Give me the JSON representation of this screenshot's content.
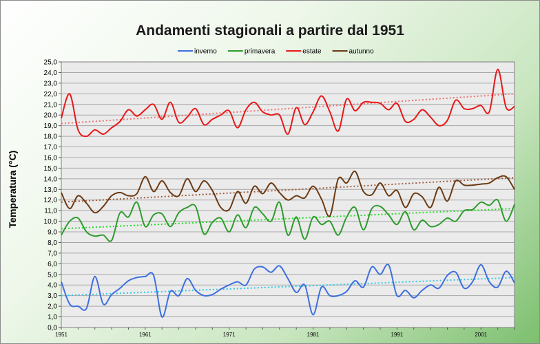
{
  "chart_data": {
    "type": "line",
    "title": "Andamenti stagionali a partire dal 1951",
    "xlabel": "",
    "ylabel": "Temperatura (°C)",
    "xlim": [
      1951,
      2005
    ],
    "ylim": [
      0,
      25
    ],
    "ytick_step": 1,
    "ytick_labels": [
      "0,0",
      "1,0",
      "2,0",
      "3,0",
      "4,0",
      "5,0",
      "6,0",
      "7,0",
      "8,0",
      "9,0",
      "10,0",
      "11,0",
      "12,0",
      "13,0",
      "14,0",
      "15,0",
      "16,0",
      "17,0",
      "18,0",
      "19,0",
      "20,0",
      "21,0",
      "22,0",
      "23,0",
      "24,0",
      "25,0"
    ],
    "xtick_labels": [
      "1951",
      "1961",
      "1971",
      "1981",
      "1991",
      "2001"
    ],
    "xtick_values": [
      1951,
      1961,
      1971,
      1981,
      1991,
      2001
    ],
    "grid": true,
    "legend_position": "top",
    "series": [
      {
        "name": "inverno",
        "color": "#3d6fe0",
        "trend_color": "#2ec8e8",
        "trend": [
          3.0,
          4.7
        ],
        "years": [
          1951,
          1952,
          1953,
          1954,
          1955,
          1956,
          1957,
          1958,
          1959,
          1960,
          1961,
          1962,
          1963,
          1964,
          1965,
          1966,
          1967,
          1968,
          1969,
          1970,
          1971,
          1972,
          1973,
          1974,
          1975,
          1976,
          1977,
          1978,
          1979,
          1980,
          1981,
          1982,
          1983,
          1984,
          1985,
          1986,
          1987,
          1988,
          1989,
          1990,
          1991,
          1992,
          1993,
          1994,
          1995,
          1996,
          1997,
          1998,
          1999,
          2000,
          2001,
          2002,
          2003,
          2004,
          2005
        ],
        "values": [
          4.3,
          2.2,
          2.0,
          1.8,
          4.8,
          2.2,
          3.1,
          3.7,
          4.4,
          4.7,
          4.8,
          4.9,
          1.0,
          3.4,
          3.0,
          4.6,
          3.5,
          3.0,
          3.1,
          3.6,
          4.0,
          4.3,
          4.0,
          5.5,
          5.7,
          5.2,
          5.8,
          4.6,
          3.3,
          4.0,
          1.2,
          3.8,
          3.0,
          3.0,
          3.4,
          4.4,
          3.8,
          5.7,
          5.0,
          5.9,
          3.0,
          3.5,
          2.8,
          3.5,
          4.0,
          3.7,
          4.9,
          5.2,
          3.7,
          4.3,
          5.9,
          4.3,
          3.8,
          5.3,
          4.2
        ]
      },
      {
        "name": "primavera",
        "color": "#2e9b2e",
        "trend_color": "#22dd22",
        "trend": [
          9.3,
          11.2
        ],
        "years": [
          1951,
          1952,
          1953,
          1954,
          1955,
          1956,
          1957,
          1958,
          1959,
          1960,
          1961,
          1962,
          1963,
          1964,
          1965,
          1966,
          1967,
          1968,
          1969,
          1970,
          1971,
          1972,
          1973,
          1974,
          1975,
          1976,
          1977,
          1978,
          1979,
          1980,
          1981,
          1982,
          1983,
          1984,
          1985,
          1986,
          1987,
          1988,
          1989,
          1990,
          1991,
          1992,
          1993,
          1994,
          1995,
          1996,
          1997,
          1998,
          1999,
          2000,
          2001,
          2002,
          2003,
          2004,
          2005
        ],
        "values": [
          8.7,
          10.0,
          10.3,
          9.0,
          8.6,
          8.7,
          8.2,
          10.8,
          10.4,
          11.8,
          9.5,
          10.6,
          10.7,
          9.5,
          10.8,
          11.3,
          11.4,
          8.8,
          9.9,
          10.3,
          9.0,
          10.6,
          9.4,
          11.3,
          10.7,
          10.0,
          11.8,
          8.7,
          10.4,
          8.3,
          10.4,
          9.7,
          10.0,
          8.7,
          10.4,
          11.3,
          9.2,
          11.2,
          11.4,
          10.6,
          9.7,
          10.9,
          9.2,
          10.1,
          9.5,
          9.7,
          10.3,
          10.0,
          11.0,
          11.1,
          11.8,
          11.5,
          12.0,
          10.0,
          11.6
        ]
      },
      {
        "name": "estate",
        "color": "#e81818",
        "trend_color": "#f07070",
        "trend": [
          19.2,
          22.0
        ],
        "years": [
          1951,
          1952,
          1953,
          1954,
          1955,
          1956,
          1957,
          1958,
          1959,
          1960,
          1961,
          1962,
          1963,
          1964,
          1965,
          1966,
          1967,
          1968,
          1969,
          1970,
          1971,
          1972,
          1973,
          1974,
          1975,
          1976,
          1977,
          1978,
          1979,
          1980,
          1981,
          1982,
          1983,
          1984,
          1985,
          1986,
          1987,
          1988,
          1989,
          1990,
          1991,
          1992,
          1993,
          1994,
          1995,
          1996,
          1997,
          1998,
          1999,
          2000,
          2001,
          2002,
          2003,
          2004,
          2005
        ],
        "values": [
          19.7,
          22.0,
          18.6,
          18.0,
          18.6,
          18.2,
          18.8,
          19.4,
          20.5,
          19.9,
          20.5,
          21.0,
          19.6,
          21.2,
          19.3,
          19.8,
          20.6,
          19.1,
          19.6,
          20.0,
          20.4,
          18.8,
          20.5,
          21.2,
          20.3,
          20.0,
          20.0,
          18.2,
          20.7,
          19.1,
          20.3,
          21.8,
          20.3,
          18.5,
          21.5,
          20.4,
          21.2,
          21.2,
          21.1,
          20.5,
          21.1,
          19.4,
          19.6,
          20.5,
          19.8,
          19.0,
          19.5,
          21.4,
          20.6,
          20.6,
          20.9,
          20.3,
          24.3,
          20.7,
          20.8
        ]
      },
      {
        "name": "autunno",
        "color": "#6b3a13",
        "trend_color": "#a05a3c",
        "trend": [
          11.8,
          14.1
        ],
        "years": [
          1951,
          1952,
          1953,
          1954,
          1955,
          1956,
          1957,
          1958,
          1959,
          1960,
          1961,
          1962,
          1963,
          1964,
          1965,
          1966,
          1967,
          1968,
          1969,
          1970,
          1971,
          1972,
          1973,
          1974,
          1975,
          1976,
          1977,
          1978,
          1979,
          1980,
          1981,
          1982,
          1983,
          1984,
          1985,
          1986,
          1987,
          1988,
          1989,
          1990,
          1991,
          1992,
          1993,
          1994,
          1995,
          1996,
          1997,
          1998,
          1999,
          2000,
          2001,
          2002,
          2003,
          2004,
          2005
        ],
        "values": [
          12.7,
          11.2,
          12.4,
          11.7,
          10.8,
          11.4,
          12.4,
          12.7,
          12.4,
          12.6,
          14.2,
          12.8,
          13.8,
          12.7,
          12.4,
          14.0,
          12.8,
          13.8,
          12.9,
          11.3,
          11.1,
          12.8,
          11.7,
          13.3,
          12.6,
          13.6,
          12.7,
          12.0,
          12.4,
          12.2,
          13.3,
          12.1,
          10.5,
          14.0,
          13.6,
          14.7,
          12.8,
          12.5,
          13.6,
          12.4,
          12.9,
          11.3,
          12.6,
          12.3,
          11.3,
          13.2,
          11.9,
          13.8,
          13.4,
          13.4,
          13.5,
          13.6,
          14.1,
          14.2,
          13.0
        ]
      }
    ]
  }
}
